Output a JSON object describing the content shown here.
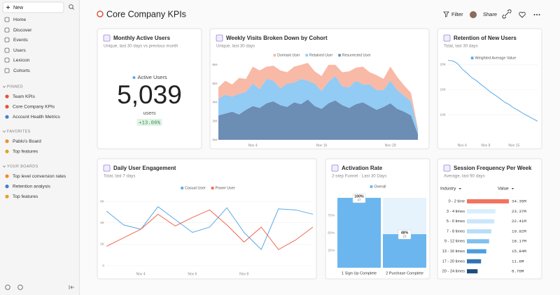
{
  "sidebar": {
    "new_button": "New",
    "nav": [
      "Home",
      "Discover",
      "Events",
      "Users",
      "Lexicon",
      "Cohorts"
    ],
    "sections": [
      {
        "title": "PINNED",
        "items": [
          "Team KPIs",
          "Core Company KPIs",
          "Account Health Metrics"
        ]
      },
      {
        "title": "FAVORITES",
        "items": [
          "Pablo's Board",
          "Top features"
        ]
      },
      {
        "title": "YOUR BOARDS",
        "items": [
          "Top level conversion rates",
          "Retention analysis",
          "Top features"
        ]
      }
    ]
  },
  "header": {
    "title": "Core Company KPIs",
    "actions": [
      "Filter",
      "Share"
    ]
  },
  "chart_data": [
    {
      "type": "kpi",
      "title": "Monthly Active Users",
      "subtitle": "Unique, last 30 days vs previous month",
      "series_name": "Active Users",
      "color": "#5aa9e6",
      "value": 5039,
      "value_label": "5,039",
      "unit": "users",
      "change": 13.06,
      "change_label": "+13.06%"
    },
    {
      "type": "area",
      "stacked": true,
      "title": "Weekly Visits Broken Down by Cohort",
      "subtitle": "Unique, last 30 days",
      "categories": [
        null,
        null,
        null,
        null,
        null,
        "Nov 4",
        null,
        null,
        null,
        null,
        null,
        null,
        null,
        null,
        null,
        "Nov 16",
        null,
        null,
        null,
        null,
        null,
        null,
        null,
        null,
        null,
        "Nov 28",
        null,
        null,
        null,
        null
      ],
      "series": [
        {
          "name": "Dormant User",
          "color": "#f8b9a6",
          "values": [
            1200000,
            1500000,
            1300000,
            1700000,
            1400000,
            1800000,
            2000000,
            1300000,
            1600000,
            1900000,
            1200000,
            1700000,
            1500000,
            1900000,
            1300000,
            1600000,
            1800000,
            1200000,
            1500000,
            1700000,
            1400000,
            1900000,
            1300000,
            1600000,
            1200000,
            1500000,
            1400000,
            1100000,
            900000,
            200000
          ]
        },
        {
          "name": "Retained User",
          "color": "#92cbf4",
          "values": [
            1800000,
            2000000,
            1600000,
            2200000,
            1900000,
            2400000,
            2000000,
            2600000,
            2200000,
            1800000,
            2500000,
            2100000,
            2700000,
            2000000,
            2400000,
            1900000,
            2300000,
            2600000,
            2000000,
            2200000,
            2500000,
            1900000,
            2300000,
            2100000,
            1800000,
            2400000,
            2000000,
            1700000,
            1500000,
            400000
          ]
        },
        {
          "name": "Resurrected User",
          "color": "#6c8db4",
          "values": [
            2600000,
            2800000,
            3000000,
            2700000,
            3200000,
            3600000,
            3400000,
            3900000,
            4100000,
            3700000,
            3500000,
            4000000,
            3800000,
            4300000,
            3600000,
            3300000,
            3900000,
            4200000,
            3700000,
            3400000,
            3800000,
            4000000,
            3600000,
            3200000,
            3500000,
            3900000,
            3300000,
            3000000,
            2600000,
            600000
          ]
        }
      ],
      "ylim": [
        0,
        8500000
      ],
      "yticks": [
        {
          "value": 0,
          "label": "0M"
        },
        {
          "value": 2000000,
          "label": "2M"
        },
        {
          "value": 4000000,
          "label": "4M"
        },
        {
          "value": 6000000,
          "label": "6M"
        },
        {
          "value": 8000000,
          "label": "8M"
        }
      ],
      "grid": false
    },
    {
      "type": "line",
      "title": "Retention of New Users",
      "subtitle": "Total, last 30 days",
      "categories": [
        null,
        null,
        null,
        "Nov 4",
        null,
        null,
        null,
        null,
        "Nov 8",
        null,
        null,
        null,
        null,
        null,
        "Nov 15",
        null,
        null,
        null,
        null,
        null
      ],
      "series": [
        {
          "name": "Weighted Average Value",
          "color": "#5aa9e6",
          "values": [
            20800,
            20700,
            20200,
            19100,
            18300,
            17400,
            16800,
            16000,
            15300,
            14500,
            13900,
            13200,
            12500,
            12000,
            11300,
            10800,
            10200,
            9700,
            9200,
            8700
          ]
        }
      ],
      "ylim": [
        5000,
        21000
      ],
      "yticks": [
        {
          "value": 10000,
          "label": "10K"
        },
        {
          "value": 15000,
          "label": "15K"
        },
        {
          "value": 20000,
          "label": "20K"
        }
      ],
      "grid": true
    },
    {
      "type": "line",
      "title": "Daily User Engagement",
      "subtitle": "Total, last 7 days",
      "categories": [
        null,
        null,
        "Nov 4",
        null,
        null,
        "Nov 6",
        null,
        null,
        "Nov 8",
        null,
        null,
        null,
        null
      ],
      "series": [
        {
          "name": "Casual User",
          "color": "#5aa9e6",
          "values": [
            5100,
            3800,
            3400,
            5500,
            4300,
            3100,
            3600,
            5400,
            3100,
            1500,
            5300,
            5200,
            4800
          ]
        },
        {
          "name": "Power User",
          "color": "#f0674f",
          "values": [
            1800,
            2600,
            3400,
            4800,
            3700,
            4500,
            5200,
            3800,
            2200,
            3600,
            1500,
            2400,
            3600
          ]
        }
      ],
      "ylim": [
        0,
        6200
      ],
      "yticks": [
        0,
        {
          "value": 2000,
          "label": "2K"
        },
        {
          "value": 4000,
          "label": "4K"
        },
        {
          "value": 6000,
          "label": "6K"
        }
      ],
      "grid": true
    },
    {
      "type": "bar",
      "title": "Activation Rate",
      "subtitle": "2-step Funnel · Last 30 Days",
      "categories": [
        "1 Sign Up Complete",
        "2 Purchase Complete"
      ],
      "series": [
        {
          "name": "Overall",
          "color": "#6bb6ee",
          "values": [
            100,
            48
          ],
          "value_labels": [
            "100%",
            "48%"
          ],
          "counts": [
            47,
            23
          ]
        }
      ],
      "ylim": [
        0,
        100
      ],
      "yticks": [
        {
          "value": 25,
          "label": "25%"
        },
        {
          "value": 50,
          "label": "50%"
        },
        {
          "value": 75,
          "label": "75%"
        }
      ],
      "grid": false
    },
    {
      "type": "hbar",
      "title": "Session Frequency Per Week",
      "subtitle": "Average, last 90 days",
      "columns": [
        "Industry",
        "Value"
      ],
      "categories": [
        "0 - 2 time",
        "3 - 4 times",
        "5 - 6 times",
        "7 - 8 times",
        "9 - 12 times",
        "13 - 16 times",
        "17 - 20 times",
        "20 - 24 times"
      ],
      "values": [
        34350000,
        23370000,
        22410000,
        19920000,
        18170000,
        15840000,
        11600000,
        8760000
      ],
      "value_labels": [
        "34.35M",
        "23.37M",
        "22.41M",
        "19.92M",
        "18.17M",
        "15.84M",
        "11.6M",
        "8.76M"
      ],
      "colors": [
        "#f4735f",
        "#d9eefc",
        "#cbe6fa",
        "#b8ddf7",
        "#7fc0ef",
        "#4b9de0",
        "#2f74b5",
        "#1d4f80"
      ]
    }
  ]
}
